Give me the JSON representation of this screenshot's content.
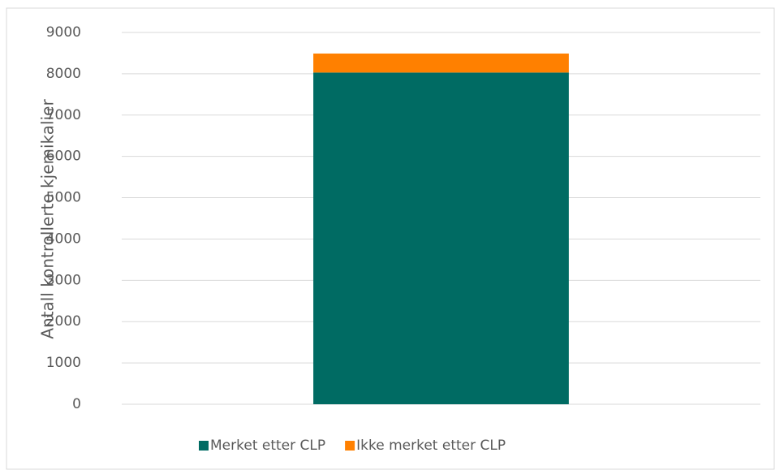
{
  "chart_data": {
    "type": "stacked_bar",
    "y_label": "Antall kontrollerte kjemikalier",
    "categories": [
      null
    ],
    "series": [
      {
        "name": "Merket etter CLP",
        "color": "#006b63",
        "values": [
          8030
        ]
      },
      {
        "name": "Ikke merket etter CLP",
        "color": "#ff8000",
        "values": [
          460
        ]
      }
    ],
    "ylim": [
      0,
      9000
    ],
    "yticks": [
      0,
      1000,
      2000,
      3000,
      4000,
      5000,
      6000,
      7000,
      8000,
      9000
    ],
    "grid": true,
    "legend": "bottom"
  }
}
